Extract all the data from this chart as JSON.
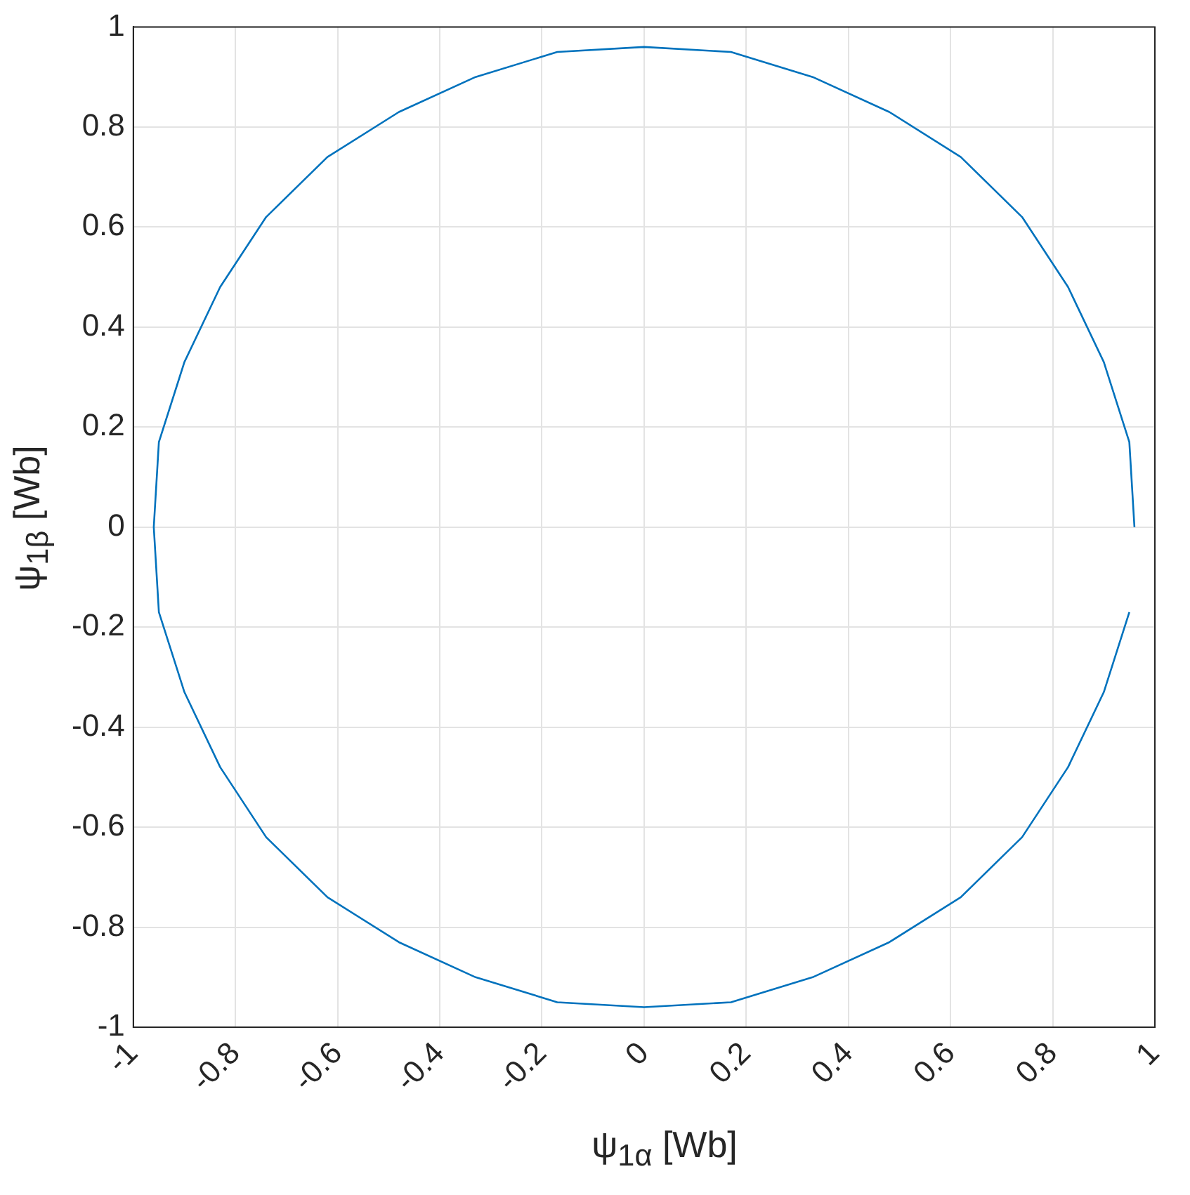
{
  "chart_data": {
    "type": "line",
    "xlabel": "ψ$_{1α}$ [Wb]",
    "ylabel": "ψ$_{1β}$ [Wb]",
    "series": [
      {
        "color": "#0072bd",
        "x": [
          0.96,
          0.95,
          0.9,
          0.83,
          0.74,
          0.62,
          0.48,
          0.33,
          0.17,
          0,
          -0.17,
          -0.33,
          -0.48,
          -0.62,
          -0.74,
          -0.83,
          -0.9,
          -0.95,
          -0.96,
          -0.95,
          -0.9,
          -0.83,
          -0.74,
          -0.62,
          -0.48,
          -0.33,
          -0.17,
          0,
          0.17,
          0.33,
          0.48,
          0.62,
          0.74,
          0.83,
          0.9,
          0.95
        ],
        "values": [
          0,
          0.17,
          0.33,
          0.48,
          0.62,
          0.74,
          0.83,
          0.9,
          0.95,
          0.96,
          0.95,
          0.9,
          0.83,
          0.74,
          0.62,
          0.48,
          0.33,
          0.17,
          0,
          -0.17,
          -0.33,
          -0.48,
          -0.62,
          -0.74,
          -0.83,
          -0.9,
          -0.95,
          -0.96,
          -0.95,
          -0.9,
          -0.83,
          -0.74,
          -0.62,
          -0.48,
          -0.33,
          -0.17
        ]
      }
    ],
    "xlim": [
      -1,
      1
    ],
    "xticks": [
      -1,
      -0.8,
      -0.6,
      -0.4,
      -0.2,
      0,
      0.2,
      0.4,
      0.6,
      0.8,
      1
    ],
    "ylim": [
      -1,
      1
    ],
    "yticks": [
      -1,
      -0.8,
      -0.6,
      -0.4,
      -0.2,
      0,
      0.2,
      0.4,
      0.6,
      0.8,
      1
    ],
    "grid": true,
    "legend": false,
    "marker": "none",
    "line_style": "solid"
  }
}
